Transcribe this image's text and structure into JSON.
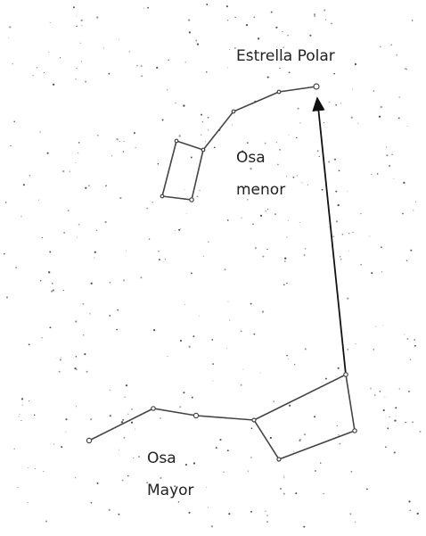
{
  "labels": {
    "polaris": "Estrella Polar",
    "ursa_minor": [
      "Osa",
      "menor"
    ],
    "ursa_major": [
      "Osa",
      "Mayor"
    ]
  }
}
